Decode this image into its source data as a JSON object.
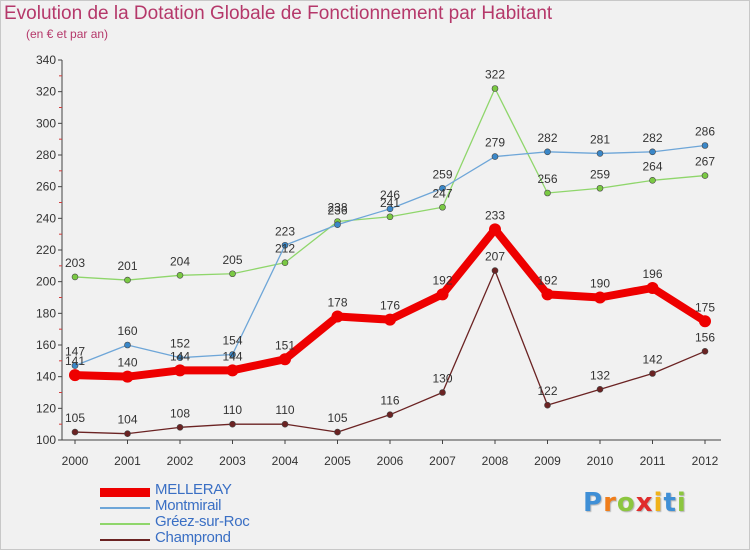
{
  "title": "Evolution de la Dotation Globale de Fonctionnement par Habitant",
  "subtitle": "(en € et par an)",
  "logo": {
    "text": "Proxiti",
    "letters": [
      {
        "ch": "P",
        "color": "#3f8fd6"
      },
      {
        "ch": "r",
        "color": "#f07d1a"
      },
      {
        "ch": "o",
        "color": "#8cc63f"
      },
      {
        "ch": "x",
        "color": "#e02d2d"
      },
      {
        "ch": "i",
        "color": "#f0b21a"
      },
      {
        "ch": "t",
        "color": "#3f8fd6"
      },
      {
        "ch": "i",
        "color": "#8cc63f"
      }
    ]
  },
  "chart_data": {
    "type": "line",
    "categories": [
      "2000",
      "2001",
      "2002",
      "2003",
      "2004",
      "2005",
      "2006",
      "2007",
      "2008",
      "2009",
      "2010",
      "2011",
      "2012"
    ],
    "yticks": [
      "100",
      "120",
      "140",
      "160",
      "180",
      "200",
      "220",
      "240",
      "260",
      "280",
      "300",
      "320",
      "340"
    ],
    "ylim": [
      100,
      340
    ],
    "grid": false,
    "legend_position": "bottom-left",
    "series": [
      {
        "name": "Champrond",
        "color": "#6b2323",
        "marker_color": "#6b2323",
        "values": [
          105,
          104,
          108,
          110,
          110,
          105,
          116,
          130,
          207,
          122,
          132,
          142,
          156
        ],
        "labels": [
          "105",
          "104",
          "108",
          "110",
          "110",
          "105",
          "116",
          "130",
          "207",
          "122",
          "132",
          "142",
          "156"
        ]
      },
      {
        "name": "Gréez-sur-Roc",
        "color": "#8fd66b",
        "marker_color": "#7ac943",
        "values": [
          203,
          201,
          204,
          205,
          212,
          238,
          241,
          247,
          322,
          256,
          259,
          264,
          267
        ],
        "labels": [
          "203",
          "201",
          "204",
          "205",
          "212",
          "238",
          "241",
          "247",
          "322",
          "256",
          "259",
          "264",
          "267"
        ]
      },
      {
        "name": "Montmirail",
        "color": "#6ea6d8",
        "marker_color": "#3a87c8",
        "values": [
          147,
          160,
          152,
          154,
          223,
          236,
          246,
          259,
          279,
          282,
          281,
          282,
          286
        ],
        "labels": [
          "147",
          "160",
          "152",
          "154",
          "223",
          "236",
          "246",
          "259",
          "279",
          "282",
          "281",
          "282",
          "286"
        ]
      },
      {
        "name": "MELLERAY",
        "color": "#ee0000",
        "marker_color": "#ee0000",
        "values": [
          141,
          140,
          144,
          144,
          151,
          178,
          176,
          192,
          233,
          192,
          190,
          196,
          175
        ],
        "labels": [
          "141",
          "140",
          "144",
          "144",
          "151",
          "178",
          "176",
          "192",
          "233",
          "192",
          "190",
          "196",
          "175"
        ]
      }
    ],
    "legend": [
      {
        "name": "MELLERAY",
        "color": "#ee0000",
        "text_color": "#3a6fc4",
        "width": 9
      },
      {
        "name": "Montmirail",
        "color": "#6ea6d8",
        "text_color": "#3a6fc4",
        "width": 2
      },
      {
        "name": "Gréez-sur-Roc",
        "color": "#8fd66b",
        "text_color": "#3a6fc4",
        "width": 2
      },
      {
        "name": "Champrond",
        "color": "#6b2323",
        "text_color": "#3a6fc4",
        "width": 2
      }
    ]
  }
}
